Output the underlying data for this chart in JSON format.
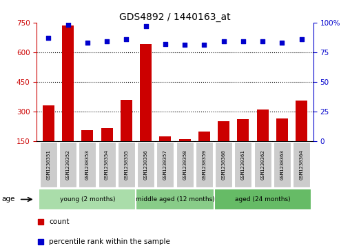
{
  "title": "GDS4892 / 1440163_at",
  "samples": [
    "GSM1230351",
    "GSM1230352",
    "GSM1230353",
    "GSM1230354",
    "GSM1230355",
    "GSM1230356",
    "GSM1230357",
    "GSM1230358",
    "GSM1230359",
    "GSM1230360",
    "GSM1230361",
    "GSM1230362",
    "GSM1230363",
    "GSM1230364"
  ],
  "counts": [
    330,
    735,
    205,
    215,
    360,
    640,
    175,
    160,
    200,
    252,
    260,
    310,
    265,
    355
  ],
  "percentile": [
    87,
    98,
    83,
    84,
    86,
    97,
    82,
    81,
    81,
    84,
    84,
    84,
    83,
    86
  ],
  "ylim_left": [
    150,
    750
  ],
  "ylim_right": [
    0,
    100
  ],
  "yticks_left": [
    150,
    300,
    450,
    600,
    750
  ],
  "yticks_right": [
    0,
    25,
    50,
    75,
    100
  ],
  "bar_color": "#cc0000",
  "dot_color": "#0000cc",
  "groups": [
    {
      "label": "young (2 months)",
      "start": 0,
      "end": 5
    },
    {
      "label": "middle aged (12 months)",
      "start": 5,
      "end": 9
    },
    {
      "label": "aged (24 months)",
      "start": 9,
      "end": 14
    }
  ],
  "group_colors": [
    "#aaddaa",
    "#88cc88",
    "#66bb66"
  ],
  "legend_count_label": "count",
  "legend_pct_label": "percentile rank within the sample",
  "age_label": "age",
  "bar_color_hex": "#cc0000",
  "dot_color_hex": "#0000cc",
  "sample_box_color": "#cccccc",
  "left_axis_color": "#cc0000",
  "right_axis_color": "#0000cc"
}
